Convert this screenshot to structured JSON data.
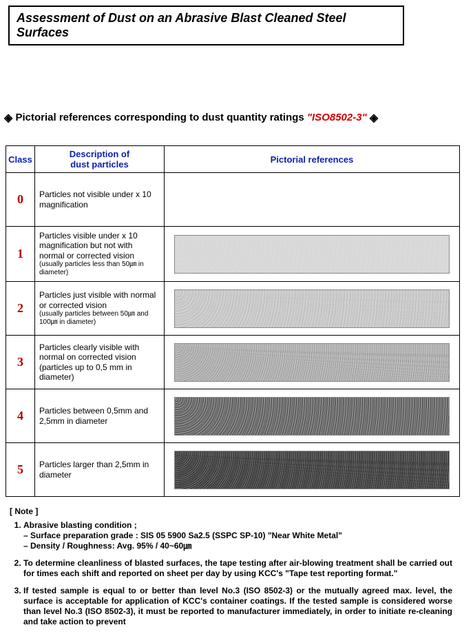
{
  "title": "Assessment of Dust on an Abrasive Blast Cleaned Steel Surfaces",
  "heading_prefix": "Pictorial references corresponding to dust quantity ratings",
  "heading_spec": "\"ISO8502-3\"",
  "table": {
    "headers": {
      "class": "Class",
      "desc_line1": "Description of",
      "desc_line2": "dust particles",
      "pict": "Pictorial references"
    },
    "rows": [
      {
        "class": "0",
        "desc_main": "Particles not visible under x 10 magnification",
        "desc_sub": "",
        "swatch_bg": "",
        "has_swatch": false
      },
      {
        "class": "1",
        "desc_main": "Particles visible under x 10 magnification but not with normal or corrected vision",
        "desc_sub": "(usually particles less than 50㎛ in diameter)",
        "swatch_bg": "repeating-radial-gradient(circle at 3px 3px, rgba(0,0,0,0.03) 0, rgba(0,0,0,0.03) 0.5px, transparent 0.5px, transparent 7px), #d9d9d9",
        "has_swatch": true
      },
      {
        "class": "2",
        "desc_main": "Particles just visible with normal or corrected vision",
        "desc_sub": "(usually particles between 50㎛ and 100㎛ in diameter)",
        "swatch_bg": "repeating-radial-gradient(circle at 2px 2px, rgba(0,0,0,0.12) 0, rgba(0,0,0,0.12) 0.6px, transparent 0.6px, transparent 4px), repeating-radial-gradient(circle at 5px 4px, rgba(0,0,0,0.08) 0, rgba(0,0,0,0.08) 0.5px, transparent 0.5px, transparent 5px), #cfcfcf",
        "has_swatch": true
      },
      {
        "class": "3",
        "desc_main": "Particles clearly visible with normal on corrected vision (particles up to 0,5 mm in diameter)",
        "desc_sub": "",
        "swatch_bg": "repeating-radial-gradient(circle at 1px 1px, rgba(0,0,0,0.18) 0, rgba(0,0,0,0.18) 0.7px, transparent 0.7px, transparent 3px), repeating-radial-gradient(circle at 3px 2px, rgba(0,0,0,0.12) 0, rgba(0,0,0,0.12) 0.6px, transparent 0.6px, transparent 3.5px), #bdbdbd",
        "has_swatch": true
      },
      {
        "class": "4",
        "desc_main": "Particles between 0,5mm and 2,5mm in diameter",
        "desc_sub": "",
        "swatch_bg": "repeating-radial-gradient(circle at 2px 2px, rgba(0,0,0,0.35) 0, rgba(0,0,0,0.35) 1px, transparent 1px, transparent 3px), repeating-radial-gradient(circle at 4px 1px, rgba(0,0,0,0.25) 0, rgba(0,0,0,0.25) 1px, transparent 1px, transparent 4px), #8a8a8a",
        "has_swatch": true
      },
      {
        "class": "5",
        "desc_main": "Particles larger than 2,5mm in diameter",
        "desc_sub": "",
        "swatch_bg": "repeating-radial-gradient(circle at 2px 2px, rgba(0,0,0,0.45) 0, rgba(0,0,0,0.45) 1.2px, transparent 1.2px, transparent 2.5px), repeating-radial-gradient(circle at 4px 3px, rgba(0,0,0,0.35) 0, rgba(0,0,0,0.35) 1px, transparent 1px, transparent 3px), #6e6e6e",
        "has_swatch": true
      }
    ]
  },
  "note_heading": "[ Note ]",
  "notes": [
    {
      "main": "Abrasive blasting condition ;",
      "sublines": [
        "– Surface preparation grade : SIS 05 5900 Sa2.5 (SSPC SP-10) \"Near White Metal\"",
        "– Density / Roughness: Avg. 95% / 40~60㎛"
      ]
    },
    {
      "main": "To determine cleanliness of blasted surfaces, the tape testing after air-blowing treatment shall be carried out for times each shift and reported on sheet per day by using KCC's \"Tape test reporting format.\"",
      "sublines": []
    },
    {
      "main": "If tested sample is equal to or better than level No.3 (ISO 8502-3) or the mutually agreed max. level, the surface is acceptable for application of KCC's container coatings.  If the tested sample is considered worse than level No.3 (ISO 8502-3), it must be reported to manufacturer immediately, in order to initiate re-cleaning and take action to prevent",
      "sublines": []
    }
  ]
}
